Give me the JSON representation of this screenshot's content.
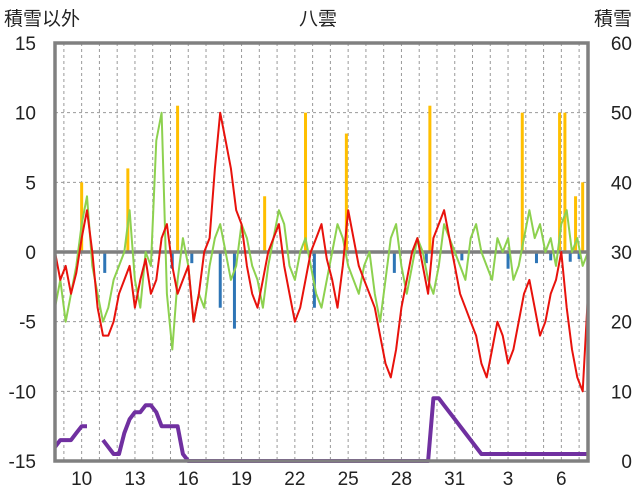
{
  "chart_data": {
    "type": "line",
    "title": "八雲",
    "left_axis_label": "積雪以外",
    "right_axis_label": "積雪",
    "left_ylim": [
      -15,
      15
    ],
    "left_ticks": [
      "15",
      "10",
      "5",
      "0",
      "-5",
      "-10",
      "-15"
    ],
    "right_ylim": [
      0,
      60
    ],
    "right_ticks": [
      "60",
      "50",
      "40",
      "30",
      "20",
      "10",
      "0"
    ],
    "x_tick_labels": [
      "10",
      "13",
      "16",
      "19",
      "22",
      "25",
      "28",
      "31",
      "3",
      "6"
    ],
    "x_tick_days": [
      3,
      6,
      9,
      12,
      15,
      18,
      21,
      24,
      27,
      30
    ],
    "x_range_days": [
      1.5,
      31.5
    ],
    "grid": true,
    "colors": {
      "temperature": "#e8120c",
      "temperature_2": "#8dd14f",
      "snow_depth": "#7030a0",
      "snowfall": "#ffbf00",
      "precip_minus": "#2e75b6",
      "zero_line": "#7f7f7f",
      "frame": "#808080",
      "grid": "#999999"
    },
    "series": [
      {
        "role": "temperature",
        "axis": "left",
        "x": [
          1.5,
          1.8,
          2.1,
          2.4,
          2.7,
          3.0,
          3.3,
          3.6,
          3.9,
          4.2,
          4.5,
          4.8,
          5.1,
          5.4,
          5.7,
          6.0,
          6.3,
          6.6,
          6.9,
          7.2,
          7.5,
          7.8,
          8.1,
          8.4,
          8.7,
          9.0,
          9.3,
          9.6,
          9.9,
          10.2,
          10.5,
          10.8,
          11.1,
          11.4,
          11.7,
          12.0,
          12.3,
          12.6,
          12.9,
          13.2,
          13.5,
          13.8,
          14.1,
          14.4,
          14.7,
          15.0,
          15.3,
          15.6,
          15.9,
          16.2,
          16.5,
          16.8,
          17.1,
          17.4,
          17.7,
          18.0,
          18.3,
          18.6,
          18.9,
          19.2,
          19.5,
          19.8,
          20.1,
          20.4,
          20.7,
          21.0,
          21.3,
          21.6,
          21.9,
          22.2,
          22.5,
          22.8,
          23.1,
          23.4,
          23.7,
          24.0,
          24.3,
          24.6,
          24.9,
          25.2,
          25.5,
          25.8,
          26.1,
          26.4,
          26.7,
          27.0,
          27.3,
          27.6,
          27.9,
          28.2,
          28.5,
          28.8,
          29.1,
          29.4,
          29.7,
          30.0,
          30.3,
          30.6,
          30.9,
          31.2,
          31.5
        ],
        "values": [
          0,
          -2,
          -1,
          -3,
          -1.5,
          1,
          3,
          0,
          -4,
          -6,
          -6,
          -5,
          -3,
          -2,
          -1,
          -4,
          -2,
          -0.5,
          -3,
          -2,
          1,
          2,
          -1,
          -3,
          -2,
          -1,
          -5,
          -3,
          0,
          1,
          6,
          10,
          8,
          6,
          3,
          2,
          -1,
          -3,
          -4,
          -2,
          0,
          1,
          2,
          -1,
          -3,
          -5,
          -4,
          -2,
          0,
          1,
          2,
          -0.5,
          -2,
          -4,
          -1,
          3,
          1,
          -1,
          -2,
          -3,
          -4,
          -6,
          -8,
          -9,
          -7,
          -4,
          -2,
          0,
          1,
          -1,
          -3,
          1,
          2,
          3,
          1,
          -1,
          -3,
          -4,
          -5,
          -6,
          -8,
          -9,
          -7,
          -5,
          -6,
          -8,
          -7,
          -5,
          -3,
          -2,
          -4,
          -6,
          -5,
          -3,
          -2,
          0,
          -4,
          -7,
          -9,
          -10,
          -3
        ]
      },
      {
        "role": "temperature_2",
        "axis": "left",
        "x": [
          1.5,
          1.8,
          2.1,
          2.4,
          2.7,
          3.0,
          3.3,
          3.6,
          3.9,
          4.2,
          4.5,
          4.8,
          5.1,
          5.4,
          5.7,
          6.0,
          6.3,
          6.6,
          6.9,
          7.2,
          7.5,
          7.8,
          8.1,
          8.4,
          8.7,
          9.0,
          9.3,
          9.6,
          9.9,
          10.2,
          10.5,
          10.8,
          11.1,
          11.4,
          11.7,
          12.0,
          12.3,
          12.6,
          12.9,
          13.2,
          13.5,
          13.8,
          14.1,
          14.4,
          14.7,
          15.0,
          15.3,
          15.6,
          15.9,
          16.2,
          16.5,
          16.8,
          17.1,
          17.4,
          17.7,
          18.0,
          18.3,
          18.6,
          18.9,
          19.2,
          19.5,
          19.8,
          20.1,
          20.4,
          20.7,
          21.0,
          21.3,
          21.6,
          21.9,
          22.2,
          22.5,
          22.8,
          23.1,
          23.4,
          23.7,
          24.0,
          24.3,
          24.6,
          24.9,
          25.2,
          25.5,
          25.8,
          26.1,
          26.4,
          26.7,
          27.0,
          27.3,
          27.6,
          27.9,
          28.2,
          28.5,
          28.8,
          29.1,
          29.4,
          29.7,
          30.0,
          30.3,
          30.6,
          30.9,
          31.2,
          31.5
        ],
        "values": [
          -4,
          -2,
          -5,
          -3,
          -1,
          2,
          4,
          -1,
          -3,
          -5,
          -4,
          -2,
          -1,
          0,
          3,
          -2,
          -4,
          0,
          -1,
          8,
          10,
          -3,
          -7,
          -2,
          1,
          -1,
          -5,
          -3,
          -4,
          -1,
          1,
          2,
          0,
          -2,
          -1,
          2,
          1,
          -1,
          -2,
          -4,
          -1,
          1,
          3,
          2,
          -1,
          -2,
          0,
          1,
          -1,
          -3,
          -4,
          -2,
          0,
          2,
          1,
          -1,
          -2,
          -3,
          -1,
          0,
          -3,
          -5,
          -2,
          1,
          2,
          -1,
          -3,
          -1,
          1,
          0,
          -2,
          -3,
          -1,
          2,
          1,
          0,
          -1,
          -2,
          1,
          2,
          0,
          -1,
          -2,
          1,
          0,
          1,
          -2,
          -1,
          1,
          3,
          1,
          2,
          0,
          1,
          -1,
          2,
          3,
          0,
          1,
          -1,
          0
        ]
      },
      {
        "role": "snow_depth",
        "axis": "right",
        "x": [
          1.5,
          1.8,
          2.1,
          2.4,
          2.7,
          3.0,
          3.3,
          3.6,
          3.9,
          4.2,
          4.5,
          4.8,
          5.1,
          5.4,
          5.7,
          6.0,
          6.3,
          6.6,
          6.9,
          7.2,
          7.5,
          7.8,
          8.1,
          8.4,
          8.7,
          9.0,
          9.3,
          9.6,
          9.9,
          10.2,
          10.5,
          10.8,
          11.1,
          11.4,
          11.7,
          12.0,
          12.3,
          12.6,
          12.9,
          13.2,
          13.5,
          13.8,
          14.1,
          14.4,
          14.7,
          15.0,
          15.3,
          15.6,
          15.9,
          16.2,
          16.5,
          16.8,
          17.1,
          17.4,
          17.7,
          18.0,
          18.3,
          18.6,
          18.9,
          19.2,
          19.5,
          19.8,
          20.1,
          20.4,
          20.7,
          21.0,
          21.3,
          21.6,
          21.9,
          22.2,
          22.5,
          22.8,
          23.1,
          23.4,
          23.7,
          24.0,
          24.3,
          24.6,
          24.9,
          25.2,
          25.5,
          25.8,
          26.1,
          26.4,
          26.7,
          27.0,
          27.3,
          27.6,
          27.9,
          28.2,
          28.5,
          28.8,
          29.1,
          29.4,
          29.7,
          30.0,
          30.3,
          30.6,
          30.9,
          31.2,
          31.5
        ],
        "values": [
          2,
          3,
          3,
          3,
          4,
          5,
          5,
          null,
          null,
          3,
          2,
          1,
          1,
          4,
          6,
          7,
          7,
          8,
          8,
          7,
          5,
          5,
          5,
          5,
          1,
          0,
          0,
          0,
          0,
          0,
          0,
          0,
          0,
          0,
          0,
          0,
          0,
          0,
          0,
          0,
          0,
          0,
          0,
          0,
          0,
          0,
          0,
          0,
          0,
          0,
          0,
          0,
          0,
          0,
          0,
          0,
          0,
          0,
          0,
          0,
          0,
          0,
          0,
          0,
          0,
          0,
          0,
          0,
          0,
          0,
          0,
          9,
          9,
          8,
          7,
          6,
          5,
          4,
          3,
          2,
          1,
          1,
          1,
          1,
          1,
          1,
          1,
          1,
          1,
          1,
          1,
          1,
          1,
          1,
          1,
          1,
          1,
          1,
          1,
          1,
          1
        ]
      }
    ],
    "snowfall_bars": {
      "axis": "left",
      "x": [
        3.0,
        5.6,
        8.4,
        13.3,
        15.6,
        17.9,
        22.6,
        27.8,
        29.9,
        30.2,
        30.8,
        31.2
      ],
      "values": [
        5,
        6,
        10.5,
        4,
        10,
        8.5,
        10.5,
        10,
        10,
        10,
        4,
        5
      ]
    },
    "precip_minus_bars": {
      "axis": "left",
      "x": [
        4.3,
        8.1,
        9.2,
        10.8,
        11.6,
        16.1,
        20.6,
        22.4,
        24.4,
        27.0,
        28.6,
        29.4,
        30.5,
        31.0
      ],
      "values": [
        -1.5,
        -1.2,
        -0.8,
        -4.0,
        -5.5,
        -4.0,
        -1.5,
        -0.8,
        -0.6,
        -1.2,
        -0.8,
        -0.6,
        -0.7,
        -0.5
      ]
    }
  }
}
